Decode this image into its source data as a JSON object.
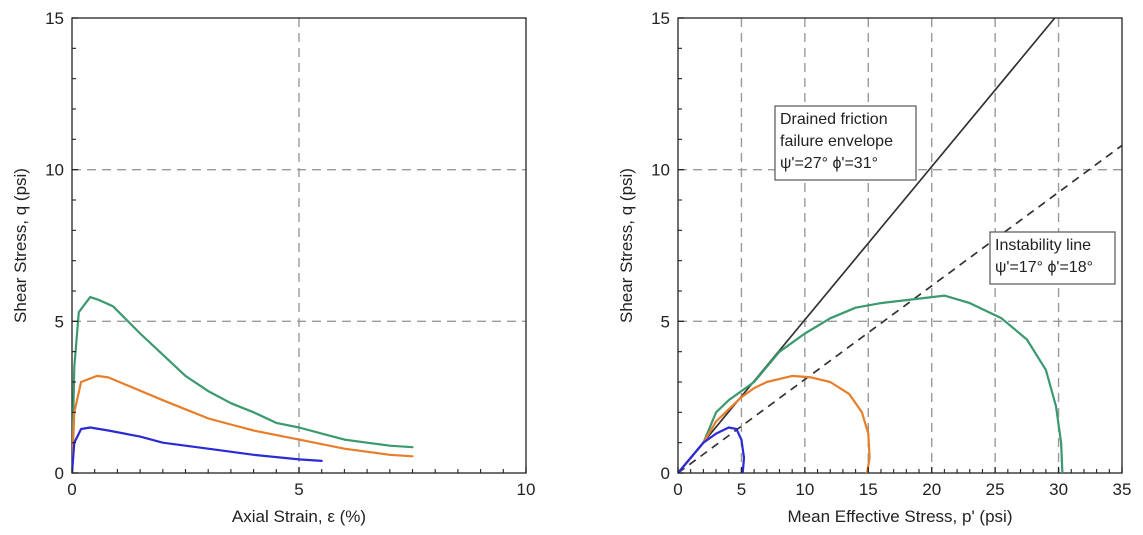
{
  "chart_data": [
    {
      "type": "line",
      "xlabel": "Axial Strain, ε (%)",
      "ylabel": "Shear Stress, q (psi)",
      "xlim": [
        0,
        10
      ],
      "ylim": [
        0,
        15
      ],
      "xticks": [
        0,
        5,
        10
      ],
      "yticks": [
        0,
        5,
        10,
        15
      ],
      "grid": true,
      "series": [
        {
          "color": "#3a9a6e",
          "points": [
            [
              0,
              0
            ],
            [
              0.05,
              3.5
            ],
            [
              0.15,
              5.3
            ],
            [
              0.4,
              5.8
            ],
            [
              0.6,
              5.7
            ],
            [
              0.9,
              5.5
            ],
            [
              1.5,
              4.6
            ],
            [
              2,
              3.9
            ],
            [
              2.5,
              3.2
            ],
            [
              3,
              2.7
            ],
            [
              3.5,
              2.3
            ],
            [
              4,
              2.0
            ],
            [
              4.5,
              1.65
            ],
            [
              5,
              1.5
            ],
            [
              5.5,
              1.3
            ],
            [
              6,
              1.1
            ],
            [
              6.5,
              1.0
            ],
            [
              7,
              0.9
            ],
            [
              7.5,
              0.85
            ]
          ]
        },
        {
          "color": "#e87e2a",
          "points": [
            [
              0,
              0
            ],
            [
              0.05,
              2.0
            ],
            [
              0.2,
              3.0
            ],
            [
              0.55,
              3.2
            ],
            [
              0.8,
              3.15
            ],
            [
              1.2,
              2.9
            ],
            [
              2,
              2.4
            ],
            [
              2.5,
              2.1
            ],
            [
              3,
              1.8
            ],
            [
              3.5,
              1.6
            ],
            [
              4,
              1.4
            ],
            [
              5,
              1.1
            ],
            [
              6,
              0.8
            ],
            [
              7,
              0.6
            ],
            [
              7.5,
              0.55
            ]
          ]
        },
        {
          "color": "#2a2ad6",
          "points": [
            [
              0,
              0
            ],
            [
              0.05,
              1.0
            ],
            [
              0.2,
              1.45
            ],
            [
              0.4,
              1.5
            ],
            [
              0.8,
              1.4
            ],
            [
              1.5,
              1.2
            ],
            [
              2,
              1.0
            ],
            [
              3,
              0.8
            ],
            [
              4,
              0.6
            ],
            [
              5,
              0.45
            ],
            [
              5.5,
              0.4
            ]
          ]
        }
      ]
    },
    {
      "type": "line",
      "xlabel": "Mean Effective Stress, p' (psi)",
      "ylabel": "Shear Stress, q (psi)",
      "xlim": [
        0,
        35
      ],
      "ylim": [
        0,
        15
      ],
      "xticks": [
        0,
        5,
        10,
        15,
        20,
        25,
        30,
        35
      ],
      "yticks": [
        0,
        5,
        10,
        15
      ],
      "grid": true,
      "lines": [
        {
          "style": "solid",
          "x": [
            0,
            29.7
          ],
          "y": [
            0,
            15
          ]
        },
        {
          "style": "dashed",
          "x": [
            0,
            35
          ],
          "y": [
            0,
            10.8
          ]
        }
      ],
      "annotations": [
        {
          "lines": [
            "Drained friction",
            "failure envelope",
            "ψ'=27°  ϕ'=31°"
          ]
        },
        {
          "lines": [
            "Instability line",
            "ψ'=17°  ϕ'=18°"
          ]
        }
      ],
      "series": [
        {
          "color": "#3a9a6e",
          "points": [
            [
              0,
              0
            ],
            [
              2,
              1.0
            ],
            [
              3,
              2.0
            ],
            [
              4,
              2.4
            ],
            [
              6,
              3.0
            ],
            [
              8,
              4.0
            ],
            [
              10,
              4.6
            ],
            [
              12,
              5.1
            ],
            [
              14,
              5.45
            ],
            [
              16,
              5.6
            ],
            [
              18,
              5.7
            ],
            [
              21,
              5.85
            ],
            [
              23,
              5.6
            ],
            [
              25.5,
              5.1
            ],
            [
              27.5,
              4.4
            ],
            [
              29,
              3.4
            ],
            [
              29.8,
              2.2
            ],
            [
              30.2,
              1.0
            ],
            [
              30.3,
              0
            ]
          ]
        },
        {
          "color": "#e87e2a",
          "points": [
            [
              0,
              0
            ],
            [
              2,
              1.0
            ],
            [
              3,
              1.7
            ],
            [
              4,
              2.1
            ],
            [
              5,
              2.5
            ],
            [
              6,
              2.8
            ],
            [
              7,
              3.0
            ],
            [
              9,
              3.2
            ],
            [
              10.5,
              3.15
            ],
            [
              12,
              3.0
            ],
            [
              13.5,
              2.6
            ],
            [
              14.5,
              2.0
            ],
            [
              15,
              1.3
            ],
            [
              15.1,
              0.5
            ],
            [
              14.9,
              0
            ]
          ]
        },
        {
          "color": "#2a2ad6",
          "points": [
            [
              0,
              0
            ],
            [
              2,
              1.0
            ],
            [
              3,
              1.3
            ],
            [
              4,
              1.5
            ],
            [
              4.6,
              1.45
            ],
            [
              5,
              1.1
            ],
            [
              5.2,
              0.5
            ],
            [
              5.1,
              0
            ]
          ]
        }
      ]
    }
  ]
}
